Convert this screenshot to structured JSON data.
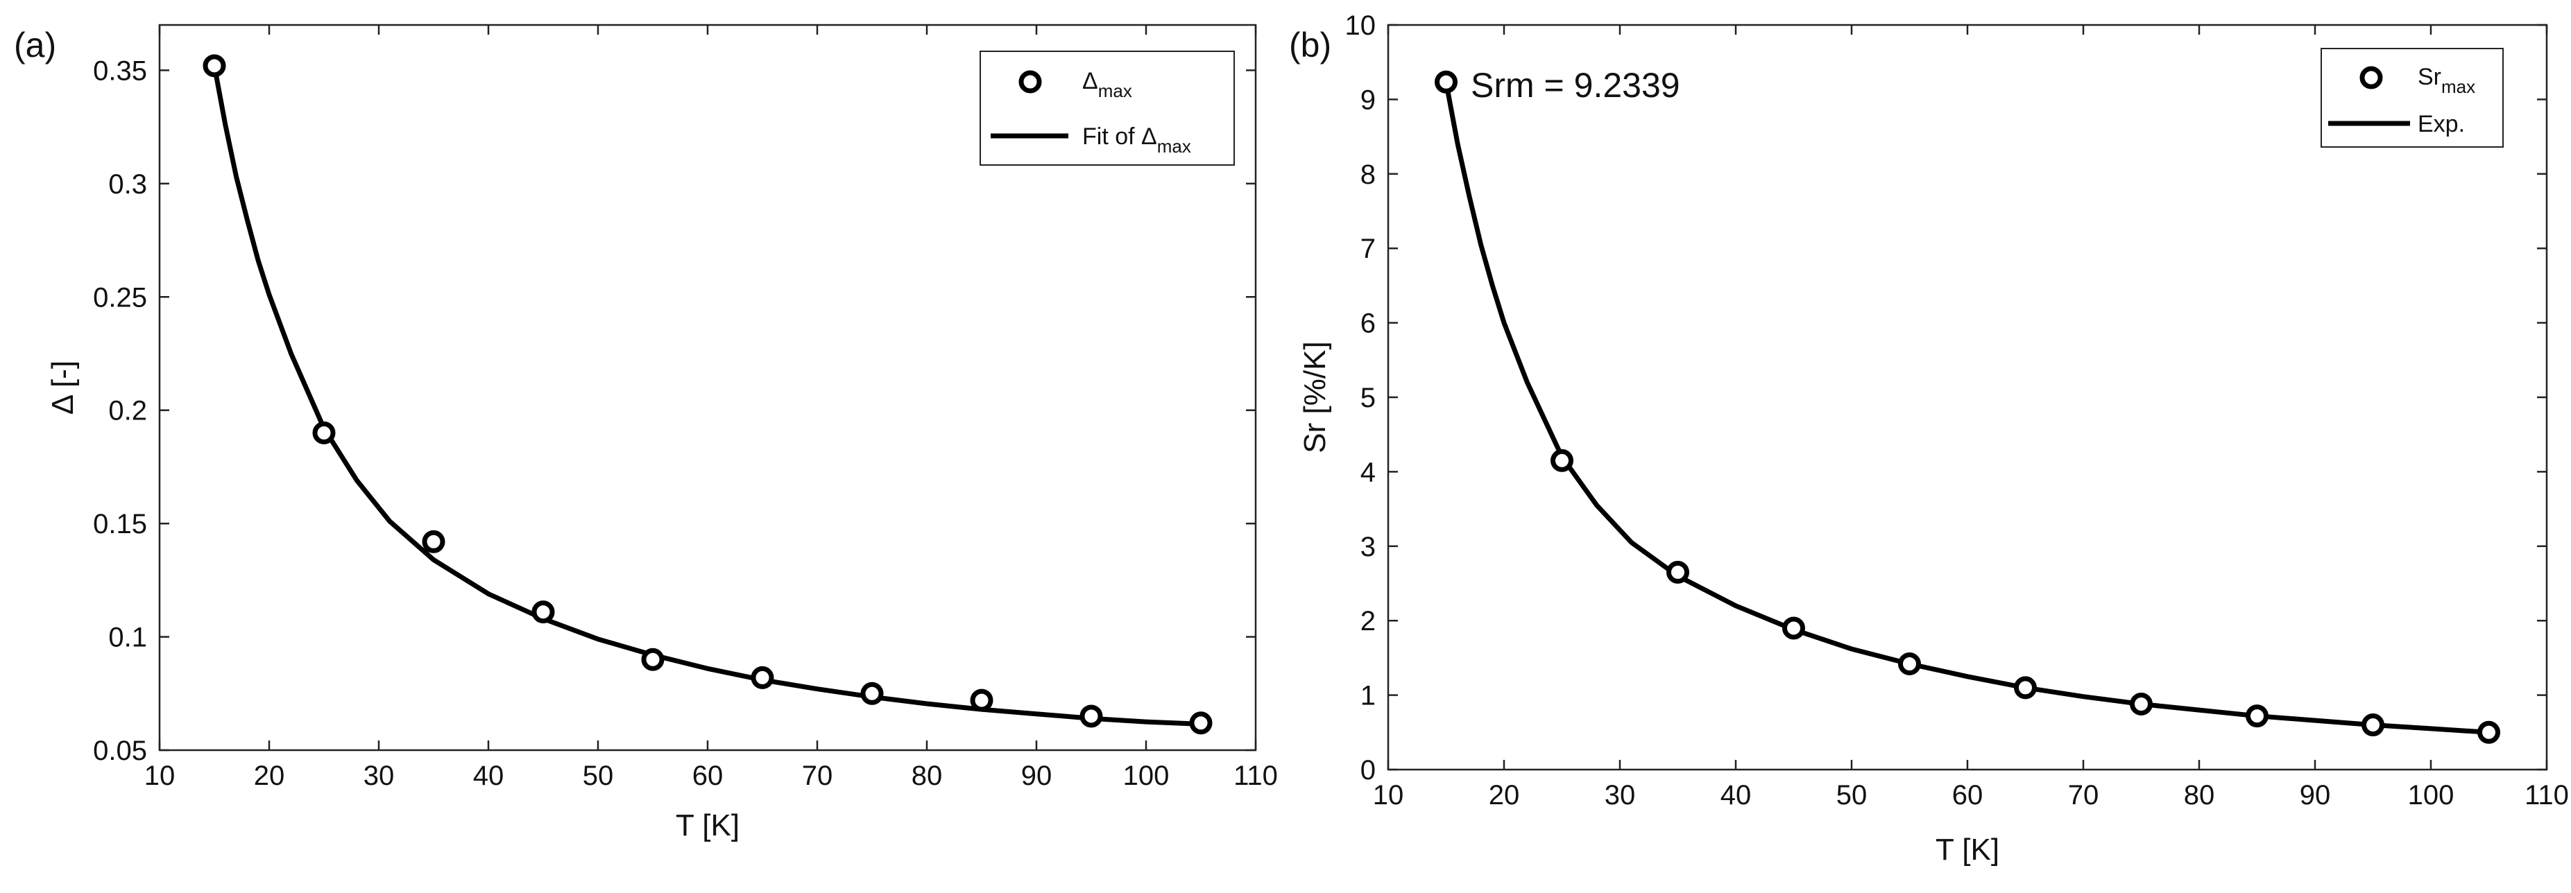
{
  "chart_data": [
    {
      "type": "scatter",
      "panel_label": "(a)",
      "xlabel": "T  [K]",
      "ylabel": "Δ [-]",
      "xlim": [
        10,
        110
      ],
      "ylim": [
        0.05,
        0.37
      ],
      "xticks": [
        "10",
        "20",
        "30",
        "40",
        "50",
        "60",
        "70",
        "80",
        "90",
        "100",
        "110"
      ],
      "yticks": [
        "0.05",
        "0.1",
        "0.15",
        "0.2",
        "0.25",
        "0.3",
        "0.35"
      ],
      "legend_position": "top-right",
      "series": [
        {
          "name": "Δ",
          "name_sub": "max",
          "style": "markers",
          "x": [
            15,
            25,
            35,
            45,
            55,
            65,
            75,
            85,
            95,
            105
          ],
          "y": [
            0.352,
            0.19,
            0.142,
            0.111,
            0.09,
            0.082,
            0.075,
            0.072,
            0.065,
            0.062
          ]
        },
        {
          "name": "Fit of Δ",
          "name_sub": "max",
          "style": "line",
          "x": [
            15,
            16,
            17,
            18,
            19,
            20,
            22,
            25,
            28,
            31,
            35,
            40,
            45,
            50,
            55,
            60,
            65,
            70,
            75,
            80,
            85,
            90,
            95,
            100,
            105
          ],
          "y": [
            0.352,
            0.326,
            0.303,
            0.284,
            0.266,
            0.251,
            0.225,
            0.192,
            0.169,
            0.151,
            0.134,
            0.119,
            0.108,
            0.099,
            0.092,
            0.086,
            0.081,
            0.077,
            0.0735,
            0.0705,
            0.068,
            0.066,
            0.064,
            0.0625,
            0.0615
          ]
        }
      ]
    },
    {
      "type": "scatter",
      "panel_label": "(b)",
      "xlabel": "T [K]",
      "ylabel": "Sr [%/K]",
      "xlim": [
        10,
        110
      ],
      "ylim": [
        0,
        10
      ],
      "xticks": [
        "10",
        "20",
        "30",
        "40",
        "50",
        "60",
        "70",
        "80",
        "90",
        "100",
        "110"
      ],
      "yticks": [
        "0",
        "1",
        "2",
        "3",
        "4",
        "5",
        "6",
        "7",
        "8",
        "9",
        "10"
      ],
      "legend_position": "top-right",
      "annotation": "Srm = 9.2339",
      "series": [
        {
          "name": "Sr",
          "name_sub": "max",
          "style": "markers",
          "x": [
            15,
            25,
            35,
            45,
            55,
            65,
            75,
            85,
            95,
            105
          ],
          "y": [
            9.2339,
            4.15,
            2.65,
            1.9,
            1.42,
            1.1,
            0.88,
            0.72,
            0.6,
            0.5
          ]
        },
        {
          "name": "Exp.",
          "name_sub": "",
          "style": "line",
          "x": [
            15,
            16,
            17,
            18,
            19,
            20,
            22,
            25,
            28,
            31,
            35,
            40,
            45,
            50,
            55,
            60,
            65,
            70,
            75,
            80,
            85,
            90,
            95,
            100,
            105
          ],
          "y": [
            9.23,
            8.4,
            7.7,
            7.05,
            6.5,
            6.0,
            5.2,
            4.2,
            3.55,
            3.05,
            2.6,
            2.2,
            1.88,
            1.62,
            1.42,
            1.25,
            1.1,
            0.98,
            0.88,
            0.8,
            0.72,
            0.66,
            0.6,
            0.55,
            0.5
          ]
        }
      ]
    }
  ]
}
